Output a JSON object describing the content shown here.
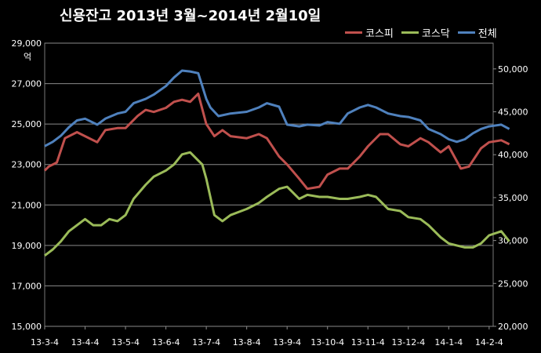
{
  "chart_data": {
    "type": "line",
    "title": "신용잔고 2013년 3월~2014년 2월10일",
    "y_unit": "억",
    "xlabel": "",
    "ylabel": "",
    "ylim_left": [
      15000,
      29000
    ],
    "ylim_right": [
      20000,
      53000
    ],
    "y_ticks_left": [
      "15,000",
      "17,000",
      "19,000",
      "21,000",
      "23,000",
      "25,000",
      "27,000",
      "29,000"
    ],
    "y_ticks_right": [
      "20,000",
      "25,000",
      "30,000",
      "35,000",
      "40,000",
      "45,000",
      "50,000"
    ],
    "categories": [
      "13-3-4",
      "13-4-4",
      "13-5-4",
      "13-6-4",
      "13-7-4",
      "13-8-4",
      "13-9-4",
      "13-10-4",
      "13-11-4",
      "13-12-4",
      "14-1-4",
      "14-2-4"
    ],
    "legend_position": "top-right",
    "grid": "horizontal",
    "series": [
      {
        "name": "코스피",
        "axis": "left",
        "color": "#c0504d",
        "x": [
          0,
          0.1,
          0.3,
          0.5,
          0.8,
          1.0,
          1.3,
          1.5,
          1.8,
          2.0,
          2.3,
          2.5,
          2.7,
          3.0,
          3.2,
          3.4,
          3.6,
          3.8,
          4.0,
          4.2,
          4.4,
          4.6,
          5.0,
          5.3,
          5.5,
          5.8,
          6.0,
          6.3,
          6.5,
          6.8,
          7.0,
          7.3,
          7.5,
          7.8,
          8.0,
          8.3,
          8.5,
          8.8,
          9.0,
          9.3,
          9.5,
          9.8,
          10.0,
          10.3,
          10.5,
          10.8,
          11.0,
          11.3,
          11.5
        ],
        "values": [
          22700,
          22900,
          23100,
          24300,
          24600,
          24400,
          24100,
          24700,
          24800,
          24800,
          25400,
          25700,
          25600,
          25800,
          26100,
          26200,
          26100,
          26500,
          25000,
          24400,
          24700,
          24400,
          24300,
          24500,
          24300,
          23400,
          23000,
          22300,
          21800,
          21900,
          22500,
          22800,
          22800,
          23400,
          23900,
          24500,
          24500,
          24000,
          23900,
          24300,
          24100,
          23600,
          23900,
          22800,
          22900,
          23800,
          24100,
          24200,
          24000
        ]
      },
      {
        "name": "코스닥",
        "axis": "left",
        "color": "#9bbb59",
        "x": [
          0,
          0.2,
          0.4,
          0.6,
          0.8,
          1.0,
          1.2,
          1.4,
          1.6,
          1.8,
          2.0,
          2.2,
          2.5,
          2.7,
          3.0,
          3.2,
          3.4,
          3.6,
          3.8,
          3.9,
          4.0,
          4.2,
          4.4,
          4.6,
          5.0,
          5.3,
          5.5,
          5.8,
          6.0,
          6.3,
          6.5,
          6.8,
          7.0,
          7.3,
          7.5,
          7.8,
          8.0,
          8.2,
          8.5,
          8.8,
          9.0,
          9.3,
          9.5,
          9.8,
          10.0,
          10.2,
          10.4,
          10.6,
          10.8,
          11.0,
          11.3,
          11.5
        ],
        "values": [
          18500,
          18800,
          19200,
          19700,
          20000,
          20300,
          20000,
          20000,
          20300,
          20200,
          20500,
          21300,
          22000,
          22400,
          22700,
          23000,
          23500,
          23600,
          23200,
          23000,
          22300,
          20500,
          20200,
          20500,
          20800,
          21100,
          21400,
          21800,
          21900,
          21300,
          21500,
          21400,
          21400,
          21300,
          21300,
          21400,
          21500,
          21400,
          20800,
          20700,
          20400,
          20300,
          20000,
          19400,
          19100,
          19000,
          18900,
          18900,
          19100,
          19500,
          19700,
          19200
        ]
      },
      {
        "name": "전체",
        "axis": "right",
        "color": "#4f81bd",
        "x": [
          0,
          0.2,
          0.4,
          0.6,
          0.8,
          1.0,
          1.3,
          1.5,
          1.8,
          2.0,
          2.2,
          2.5,
          2.7,
          3.0,
          3.2,
          3.4,
          3.6,
          3.8,
          3.9,
          4.0,
          4.1,
          4.3,
          4.6,
          5.0,
          5.3,
          5.5,
          5.8,
          6.0,
          6.3,
          6.5,
          6.8,
          7.0,
          7.3,
          7.5,
          7.8,
          8.0,
          8.2,
          8.5,
          8.8,
          9.0,
          9.3,
          9.5,
          9.8,
          10.0,
          10.2,
          10.4,
          10.6,
          10.8,
          11.0,
          11.3,
          11.5
        ],
        "values": [
          41000,
          41500,
          42200,
          43200,
          44000,
          44200,
          43500,
          44200,
          44800,
          45000,
          46000,
          46500,
          47000,
          48000,
          49000,
          49800,
          49700,
          49500,
          48000,
          46500,
          45500,
          44500,
          44800,
          45000,
          45500,
          46000,
          45600,
          43500,
          43300,
          43500,
          43400,
          43800,
          43600,
          44800,
          45500,
          45800,
          45500,
          44800,
          44500,
          44400,
          44000,
          43000,
          42400,
          41800,
          41500,
          41800,
          42500,
          43000,
          43300,
          43500,
          43000
        ]
      }
    ]
  }
}
